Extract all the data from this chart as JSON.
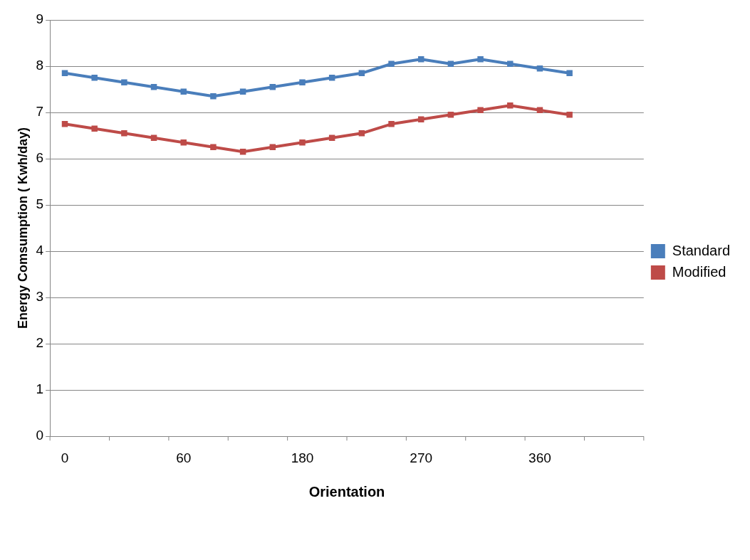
{
  "chart_data": {
    "type": "line",
    "xlabel": "Orientation",
    "ylabel": "Energy Comsumption ( Kwh/day)",
    "categories": [
      "0",
      null,
      null,
      null,
      "60",
      null,
      null,
      null,
      "180",
      null,
      null,
      null,
      "270",
      null,
      null,
      null,
      "360",
      null,
      null,
      null
    ],
    "series": [
      {
        "name": "Standard",
        "color": "#4a7ebb",
        "values": [
          7.85,
          7.75,
          7.65,
          7.55,
          7.45,
          7.35,
          7.45,
          7.55,
          7.65,
          7.75,
          7.85,
          8.05,
          8.15,
          8.05,
          8.15,
          8.05,
          7.95,
          7.85,
          null,
          null
        ]
      },
      {
        "name": "Modified",
        "color": "#be4b48",
        "values": [
          6.75,
          6.65,
          6.55,
          6.45,
          6.35,
          6.25,
          6.15,
          6.25,
          6.35,
          6.45,
          6.55,
          6.75,
          6.85,
          6.95,
          7.05,
          7.15,
          7.05,
          6.95,
          null,
          null
        ]
      }
    ],
    "ylim": [
      0,
      9
    ],
    "yticks": [
      0,
      1,
      2,
      3,
      4,
      5,
      6,
      7,
      8,
      9
    ],
    "grid": "y",
    "legend": "right",
    "marker": "square",
    "line_style": "solid"
  }
}
